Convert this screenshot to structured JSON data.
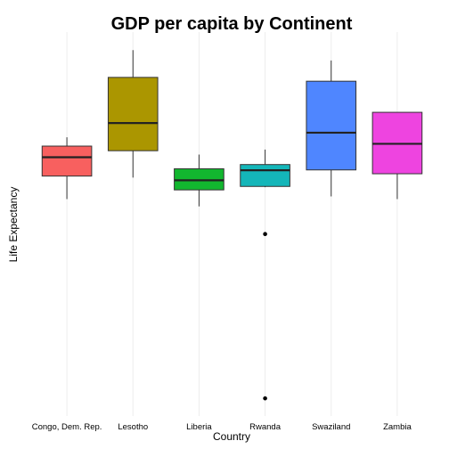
{
  "chart_data": {
    "type": "box",
    "title": "GDP per capita by Continent",
    "xlabel": "Country",
    "ylabel": "Life Expectancy",
    "grid": "vertical",
    "y_axis_ticks_shown": false,
    "categories": [
      "Congo, Dem. Rep.",
      "Lesotho",
      "Liberia",
      "Rwanda",
      "Swaziland",
      "Zambia"
    ],
    "ylim": [
      0,
      100
    ],
    "boxes": [
      {
        "category": "Congo, Dem. Rep.",
        "color": "#F8605F",
        "min": 56.5,
        "q1": 62.5,
        "median": 67.4,
        "q3": 70.3,
        "max": 72.6,
        "outliers": []
      },
      {
        "category": "Lesotho",
        "color": "#AB9600",
        "min": 62.1,
        "q1": 69.1,
        "median": 76.3,
        "q3": 88.2,
        "max": 95.3,
        "outliers": []
      },
      {
        "category": "Liberia",
        "color": "#12B72F",
        "min": 54.6,
        "q1": 58.9,
        "median": 61.4,
        "q3": 64.4,
        "max": 68.1,
        "outliers": []
      },
      {
        "category": "Rwanda",
        "color": "#14B6B9",
        "min": 59.6,
        "q1": 59.8,
        "median": 64.0,
        "q3": 65.5,
        "max": 69.4,
        "outliers": [
          47.4,
          4.6
        ]
      },
      {
        "category": "Swaziland",
        "color": "#4F86FF",
        "min": 57.2,
        "q1": 64.1,
        "median": 73.8,
        "q3": 87.2,
        "max": 92.6,
        "outliers": []
      },
      {
        "category": "Zambia",
        "color": "#EE44E0",
        "min": 56.5,
        "q1": 63.1,
        "median": 70.9,
        "q3": 79.1,
        "max": 79.1,
        "outliers": []
      }
    ]
  }
}
